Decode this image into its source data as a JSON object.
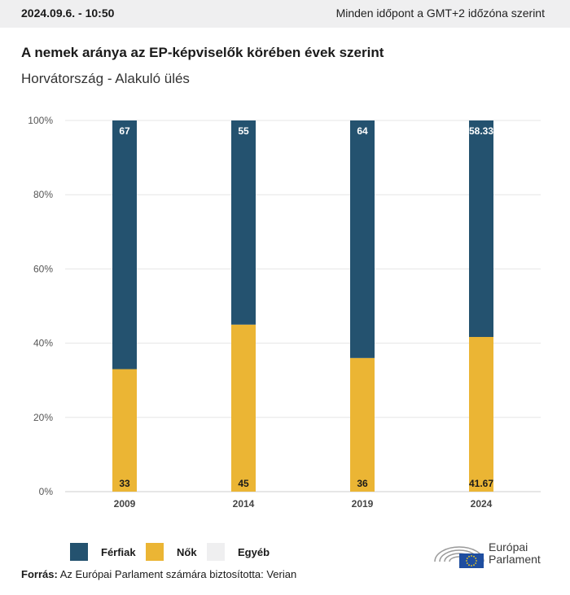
{
  "header": {
    "timestamp": "2024.09.6. - 10:50",
    "timezone_note": "Minden időpont a GMT+2 időzóna szerint"
  },
  "title": "A nemek aránya az EP-képviselők körében évek szerint",
  "subtitle": "Horvátország - Alakuló ülés",
  "colors": {
    "ferfiak": "#24526f",
    "nok": "#ebb534",
    "egyeb": "#efeff0",
    "grid": "#e6e6e6",
    "eu_blue": "#1f4ea0",
    "eu_gold": "#f7d117"
  },
  "chart_data": {
    "type": "bar",
    "stacked": true,
    "categories": [
      "2009",
      "2014",
      "2019",
      "2024"
    ],
    "series": [
      {
        "name": "Nők",
        "values": [
          33,
          45,
          36,
          41.67
        ]
      },
      {
        "name": "Férfiak",
        "values": [
          67,
          55,
          64,
          58.33
        ]
      }
    ],
    "yticks": [
      "0%",
      "20%",
      "40%",
      "60%",
      "80%",
      "100%"
    ],
    "ylim": [
      0,
      100
    ],
    "grid": true,
    "legend": [
      "Férfiak",
      "Nők",
      "Egyéb"
    ],
    "legend_position": "bottom-left"
  },
  "source": {
    "label": "Forrás:",
    "text": "Az Európai Parlament számára biztosította: Verian"
  },
  "logo": {
    "line1": "Európai",
    "line2": "Parlament"
  }
}
